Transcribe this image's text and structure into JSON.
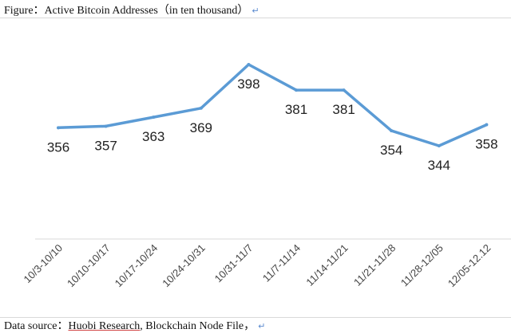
{
  "header": {
    "figure_label": "Figure：",
    "title": "Active Bitcoin Addresses（in ten thousand）",
    "return_mark": "↵"
  },
  "footer": {
    "source_label": "Data source：",
    "source_link": "Huobi Research",
    "source_rest": ", Blockchain Node File，",
    "return_mark": "↵"
  },
  "chart_data": {
    "type": "line",
    "title": "Active Bitcoin Addresses（in ten thousand）",
    "categories": [
      "10/3-10/10",
      "10/10-10/17",
      "10/17-10/24",
      "10/24-10/31",
      "10/31-11/7",
      "11/7-11/14",
      "11/14-11/21",
      "11/21-11/28",
      "11/28-12/05",
      "12/05-12.12"
    ],
    "values": [
      356,
      357,
      363,
      369,
      398,
      381,
      381,
      354,
      344,
      358
    ],
    "data_labels": [
      "356",
      "357",
      "363",
      "369",
      "398",
      "381",
      "381",
      "354",
      "344",
      "358"
    ],
    "line_color": "#5b9bd5",
    "grid": false,
    "legend": "none"
  }
}
